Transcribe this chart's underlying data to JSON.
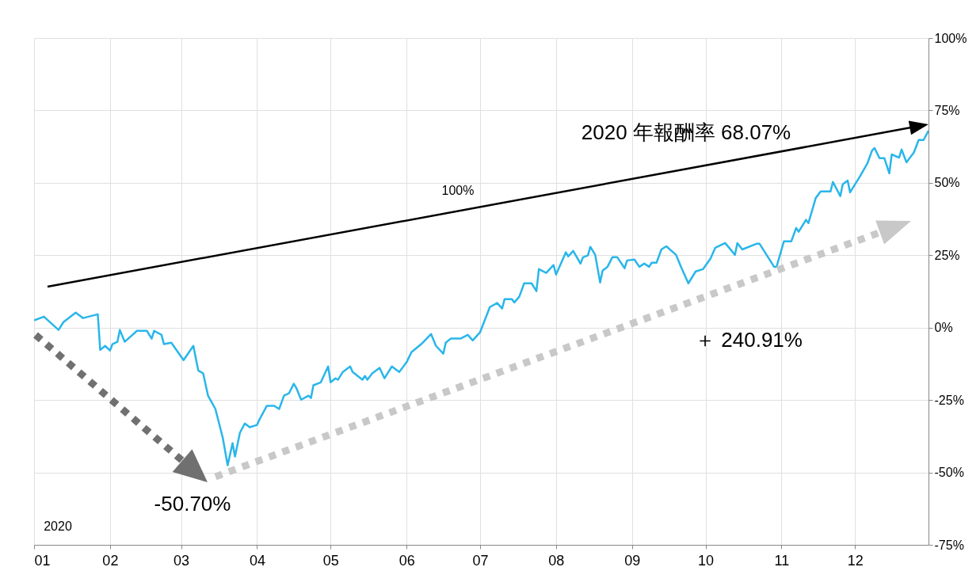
{
  "chart_data": {
    "type": "line",
    "x": [
      "2020-01-01",
      "2020-01-05",
      "2020-01-11",
      "2020-01-13",
      "2020-01-18",
      "2020-01-21",
      "2020-01-27",
      "2020-01-28",
      "2020-01-30",
      "2020-02-01",
      "2020-02-02",
      "2020-02-04",
      "2020-02-05",
      "2020-02-07",
      "2020-02-12",
      "2020-02-16",
      "2020-02-18",
      "2020-02-19",
      "2020-02-22",
      "2020-02-23",
      "2020-02-26",
      "2020-03-02",
      "2020-03-06",
      "2020-03-08",
      "2020-03-10",
      "2020-03-12",
      "2020-03-15",
      "2020-03-18",
      "2020-03-20",
      "2020-03-22",
      "2020-03-23",
      "2020-03-25",
      "2020-03-27",
      "2020-03-29",
      "2020-04-01",
      "2020-04-02",
      "2020-04-05",
      "2020-04-08",
      "2020-04-10",
      "2020-04-12",
      "2020-04-14",
      "2020-04-16",
      "2020-04-17",
      "2020-04-19",
      "2020-04-22",
      "2020-04-23",
      "2020-04-24",
      "2020-04-27",
      "2020-04-30",
      "2020-05-01",
      "2020-05-03",
      "2020-05-04",
      "2020-05-06",
      "2020-05-09",
      "2020-05-10",
      "2020-05-14",
      "2020-05-15",
      "2020-05-16",
      "2020-05-18",
      "2020-05-21",
      "2020-05-23",
      "2020-05-26",
      "2020-05-29",
      "2020-06-01",
      "2020-06-03",
      "2020-06-07",
      "2020-06-11",
      "2020-06-13",
      "2020-06-16",
      "2020-06-17",
      "2020-06-19",
      "2020-06-23",
      "2020-06-26",
      "2020-06-28",
      "2020-07-01",
      "2020-07-05",
      "2020-07-08",
      "2020-07-10",
      "2020-07-11",
      "2020-07-14",
      "2020-07-15",
      "2020-07-17",
      "2020-07-19",
      "2020-07-22",
      "2020-07-24",
      "2020-07-25",
      "2020-07-28",
      "2020-07-31",
      "2020-08-01",
      "2020-08-05",
      "2020-08-06",
      "2020-08-08",
      "2020-08-11",
      "2020-08-12",
      "2020-08-14",
      "2020-08-15",
      "2020-08-17",
      "2020-08-19",
      "2020-08-20",
      "2020-08-22",
      "2020-08-24",
      "2020-08-26",
      "2020-08-29",
      "2020-08-30",
      "2020-09-02",
      "2020-09-04",
      "2020-09-06",
      "2020-09-08",
      "2020-09-09",
      "2020-09-11",
      "2020-09-13",
      "2020-09-15",
      "2020-09-19",
      "2020-09-21",
      "2020-09-24",
      "2020-09-27",
      "2020-09-30",
      "2020-10-03",
      "2020-10-05",
      "2020-10-09",
      "2020-10-12",
      "2020-10-13",
      "2020-10-14",
      "2020-10-16",
      "2020-10-22",
      "2020-10-23",
      "2020-10-29",
      "2020-10-30",
      "2020-11-02",
      "2020-11-05",
      "2020-11-07",
      "2020-11-08",
      "2020-11-11",
      "2020-11-12",
      "2020-11-15",
      "2020-11-17",
      "2020-11-21",
      "2020-11-22",
      "2020-11-25",
      "2020-11-26",
      "2020-11-28",
      "2020-11-29",
      "2020-12-03",
      "2020-12-06",
      "2020-12-08",
      "2020-12-09",
      "2020-12-11",
      "2020-12-13",
      "2020-12-15",
      "2020-12-16",
      "2020-12-19",
      "2020-12-20",
      "2020-12-22",
      "2020-12-24",
      "2020-12-25",
      "2020-12-27",
      "2020-12-29",
      "2020-12-31"
    ],
    "series": [
      {
        "color": "#29b6ea",
        "values": [
          2.5,
          3.8,
          -0.8,
          1.9,
          5.2,
          3.3,
          4.6,
          -7.7,
          -6.3,
          -7.9,
          -5.7,
          -4.9,
          -0.8,
          -4.9,
          -1.1,
          -1.1,
          -3.8,
          -1.1,
          -2.5,
          -5.7,
          -5.2,
          -11.2,
          -6.3,
          -14.8,
          -15.8,
          -23.5,
          -28.1,
          -38,
          -47.5,
          -39.9,
          -44.5,
          -36.3,
          -33.1,
          -34.4,
          -33.6,
          -31.7,
          -27,
          -27,
          -28.1,
          -23.5,
          -22.7,
          -19.4,
          -20.8,
          -24.9,
          -23.5,
          -24.3,
          -19.9,
          -18.9,
          -13.4,
          -18.9,
          -17.5,
          -18,
          -15.3,
          -13.4,
          -15.3,
          -18,
          -16.7,
          -18,
          -15.8,
          -13.9,
          -17.5,
          -13.4,
          -15.3,
          -12,
          -8.5,
          -5.7,
          -2.2,
          -6.3,
          -9,
          -5.2,
          -3.8,
          -3.8,
          -2.5,
          -4.4,
          -1.6,
          7.1,
          8.5,
          6.6,
          9.8,
          9.8,
          8.7,
          10.7,
          15.3,
          15.3,
          12.6,
          20.2,
          18.9,
          21.6,
          18.3,
          26,
          24.6,
          26.5,
          22.1,
          24.3,
          24.9,
          27.9,
          25.1,
          15.6,
          19.7,
          21,
          24.3,
          24.3,
          20.5,
          23.2,
          23.5,
          21,
          22.1,
          21,
          22.4,
          22.4,
          27,
          28.1,
          25.1,
          21,
          15.3,
          19.4,
          20.2,
          23.8,
          27.6,
          29.2,
          26.2,
          25.1,
          29.2,
          27,
          29,
          29,
          21,
          21,
          29.8,
          29.8,
          34.4,
          33.1,
          37.2,
          36.1,
          44.8,
          47,
          47,
          50.3,
          45.4,
          49.5,
          50.8,
          46.7,
          52.2,
          56.6,
          61.2,
          62,
          58.5,
          58.5,
          53.3,
          59.8,
          58.7,
          61.5,
          57.1,
          59.3,
          60.4,
          64.8,
          64.8,
          68
        ]
      }
    ],
    "xlim": [
      "2020-01-01",
      "2020-12-31"
    ],
    "xticks": [
      {
        "value": "2020-01-01",
        "label": "01"
      },
      {
        "value": "2020-02-01",
        "label": "02"
      },
      {
        "value": "2020-03-01",
        "label": "03"
      },
      {
        "value": "2020-04-01",
        "label": "04"
      },
      {
        "value": "2020-05-01",
        "label": "05"
      },
      {
        "value": "2020-06-01",
        "label": "06"
      },
      {
        "value": "2020-07-01",
        "label": "07"
      },
      {
        "value": "2020-08-01",
        "label": "08"
      },
      {
        "value": "2020-09-01",
        "label": "09"
      },
      {
        "value": "2020-10-01",
        "label": "10"
      },
      {
        "value": "2020-11-01",
        "label": "11"
      },
      {
        "value": "2020-12-01",
        "label": "12"
      }
    ],
    "ylim": [
      -75,
      100
    ],
    "yticks": [
      {
        "value": -75,
        "label": "-75%"
      },
      {
        "value": -50,
        "label": "-50%"
      },
      {
        "value": -25,
        "label": "-25%"
      },
      {
        "value": 0,
        "label": "0%"
      },
      {
        "value": 25,
        "label": "25%"
      },
      {
        "value": 50,
        "label": "50%"
      },
      {
        "value": 75,
        "label": "75%"
      },
      {
        "value": 100,
        "label": "100%"
      }
    ],
    "grid": true,
    "annotations": [
      "2020 年報酬率 68.07%",
      "100%",
      "＋ 240.91%",
      "-50.70%",
      "2020"
    ]
  }
}
